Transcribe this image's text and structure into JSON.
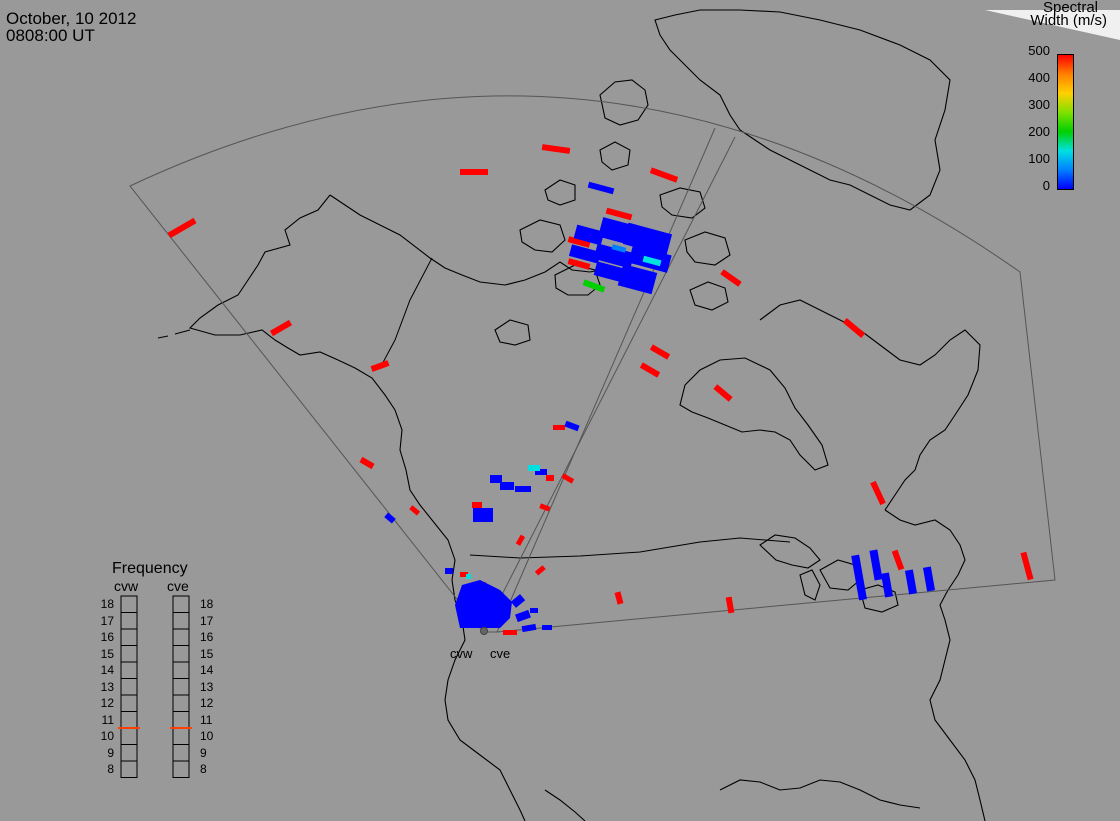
{
  "header": {
    "date": "October, 10 2012",
    "time": "0808:00 UT"
  },
  "colorbar": {
    "title_line1": "Spectral",
    "title_line2": "Width (m/s)",
    "ticks": [
      "500",
      "400",
      "300",
      "200",
      "100",
      "0"
    ],
    "colors": [
      "#ff0000",
      "#ff8000",
      "#ffd000",
      "#80e000",
      "#00d000",
      "#00e0e0",
      "#0080ff",
      "#0000ff"
    ]
  },
  "frequency": {
    "title": "Frequency",
    "columns": [
      "cvw",
      "cve"
    ],
    "ticks": [
      "18",
      "17",
      "16",
      "15",
      "14",
      "13",
      "12",
      "11",
      "10",
      "9",
      "8"
    ],
    "cvw_value_mhz": 10.5,
    "cve_value_mhz": 10.5,
    "indicator_color": "#ff4000"
  },
  "map": {
    "radar_labels": [
      "cvw",
      "cve"
    ],
    "background_color": "#999999",
    "coastline_color": "#000000"
  }
}
